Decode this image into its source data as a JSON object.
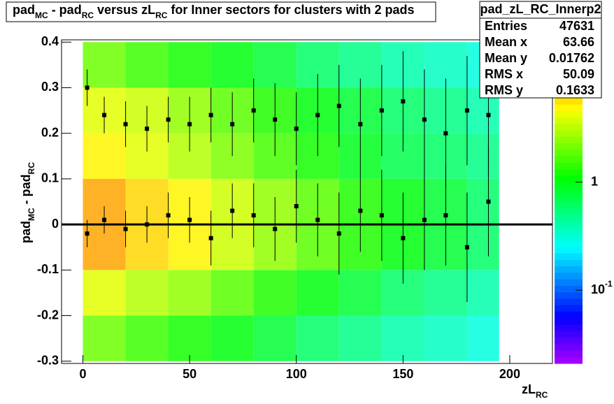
{
  "chart_data": {
    "type": "heatmap",
    "title": [
      "pad",
      "MC",
      " - pad",
      "RC",
      " versus zL",
      "RC",
      " for Inner sectors for clusters with 2 pads"
    ],
    "x_label": [
      "zL",
      "RC"
    ],
    "y_label": [
      "pad",
      "MC",
      " - pad",
      "RC"
    ],
    "xlim": [
      -10,
      220
    ],
    "ylim": [
      -0.305,
      0.405
    ],
    "xticks": [
      0,
      50,
      100,
      150,
      200
    ],
    "yticks": [
      -0.3,
      -0.2,
      -0.1,
      0,
      0.1,
      0.2,
      0.3,
      0.4
    ],
    "zlim": [
      0.021,
      20.7
    ],
    "z_log": true,
    "zticks": [
      {
        "value": 1,
        "label": "1"
      },
      {
        "value": 0.1,
        "label": "10",
        "exponent": "-1"
      }
    ],
    "x_bins": [
      0,
      20,
      40,
      60,
      80,
      100,
      120,
      140,
      160,
      180,
      195
    ],
    "y_bins": [
      -0.3,
      -0.2,
      -0.1,
      0,
      0.1,
      0.2,
      0.3,
      0.4
    ],
    "z": [
      [
        2,
        1.5,
        1.2,
        1,
        0.8,
        0.6,
        0.5,
        0.4,
        0.35,
        0.3
      ],
      [
        4,
        3,
        2.5,
        1.8,
        1.3,
        1,
        0.8,
        0.6,
        0.5,
        0.4
      ],
      [
        8,
        6,
        5,
        3.5,
        2.5,
        1.8,
        1.3,
        1,
        0.8,
        0.6
      ],
      [
        8,
        6,
        5,
        3.5,
        2.5,
        1.8,
        1.3,
        1,
        0.8,
        0.6
      ],
      [
        5,
        4,
        3,
        2.2,
        1.6,
        1.2,
        0.9,
        0.7,
        0.6,
        0.5
      ],
      [
        4,
        3.5,
        2.5,
        1.8,
        1.3,
        1,
        0.8,
        0.6,
        0.5,
        0.4
      ],
      [
        2,
        1.5,
        1.2,
        1,
        0.8,
        0.6,
        0.5,
        0.4,
        0.35,
        0.3
      ]
    ],
    "series": [
      {
        "x": [
          2,
          10,
          20,
          30,
          40,
          50,
          60,
          70,
          80,
          90,
          100,
          110,
          120,
          130,
          140,
          150,
          160,
          170,
          180,
          190
        ],
        "values": [
          -0.02,
          0.01,
          -0.01,
          0,
          0.02,
          0.01,
          -0.03,
          0.03,
          0.02,
          -0.01,
          0.04,
          0.01,
          -0.02,
          0.03,
          0.02,
          -0.03,
          0.01,
          0.02,
          -0.05,
          0.05
        ],
        "errors": [
          0.03,
          0.03,
          0.04,
          0.04,
          0.05,
          0.05,
          0.06,
          0.06,
          0.07,
          0.07,
          0.08,
          0.08,
          0.09,
          0.09,
          0.1,
          0.1,
          0.11,
          0.11,
          0.12,
          0.12
        ],
        "color": "#000000"
      },
      {
        "x": [
          2,
          10,
          20,
          30,
          40,
          50,
          60,
          70,
          80,
          90,
          100,
          110,
          120,
          130,
          140,
          150,
          160,
          170,
          180,
          190
        ],
        "values": [
          0.3,
          0.24,
          0.22,
          0.21,
          0.23,
          0.22,
          0.24,
          0.22,
          0.25,
          0.23,
          0.21,
          0.24,
          0.26,
          0.22,
          0.25,
          0.27,
          0.23,
          0.2,
          0.25,
          0.24
        ],
        "errors": [
          0.04,
          0.04,
          0.05,
          0.05,
          0.05,
          0.06,
          0.06,
          0.07,
          0.07,
          0.08,
          0.08,
          0.09,
          0.09,
          0.1,
          0.1,
          0.11,
          0.11,
          0.12,
          0.12,
          0.13
        ],
        "color": "#000000"
      }
    ],
    "stats": {
      "name": "pad_zL_RC_Innerp2",
      "rows": [
        [
          "Entries",
          "47631"
        ],
        [
          "Mean x",
          "63.66"
        ],
        [
          "Mean y",
          "0.01762"
        ],
        [
          "RMS x",
          "50.09"
        ],
        [
          "RMS y",
          "0.1633"
        ]
      ]
    }
  }
}
